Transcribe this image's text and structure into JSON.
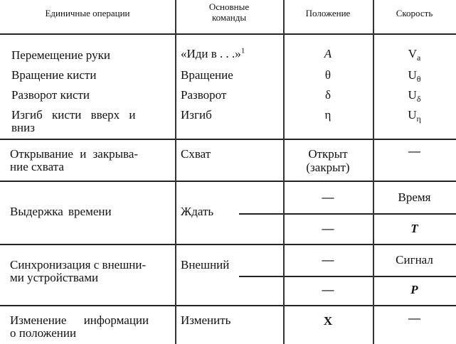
{
  "headers": [
    "Единичные операции",
    "Основные команды",
    "Положение",
    "Скорость"
  ],
  "group1": {
    "operations": [
      "Перемещение руки",
      "Вращение кисти",
      "Разворот кисти",
      "Изгиб кисти вверх и",
      "вниз"
    ],
    "commands": [
      "«Иди в . . .»",
      "Вращение",
      "Разворот",
      "Изгиб"
    ],
    "footnote_mark": "1",
    "positions": [
      "A",
      "θ",
      "δ",
      "η"
    ],
    "speeds": [
      {
        "base": "V",
        "sub": "a"
      },
      {
        "base": "U",
        "sub": "θ"
      },
      {
        "base": "U",
        "sub": "δ"
      },
      {
        "base": "U",
        "sub": "η"
      }
    ]
  },
  "group2": {
    "operation": [
      "Открывание и закрыва-",
      "ние схвата"
    ],
    "command": "Схват",
    "position": [
      "Открыт",
      "(закрыт)"
    ],
    "speed": "—"
  },
  "group3": {
    "operation": "Выдержка времени",
    "command": "Ждать",
    "positions": [
      "—",
      "—"
    ],
    "speeds": [
      "Время",
      "T"
    ]
  },
  "group4": {
    "operation": [
      "Синхронизация с внешни-",
      "ми устройствами"
    ],
    "command": "Внешний",
    "positions": [
      "—",
      "—"
    ],
    "speeds": [
      "Сигнал",
      "P"
    ]
  },
  "group5": {
    "operation": [
      "Изменение информации",
      "о положении"
    ],
    "command": "Изменить",
    "position": "X",
    "speed": "—"
  }
}
